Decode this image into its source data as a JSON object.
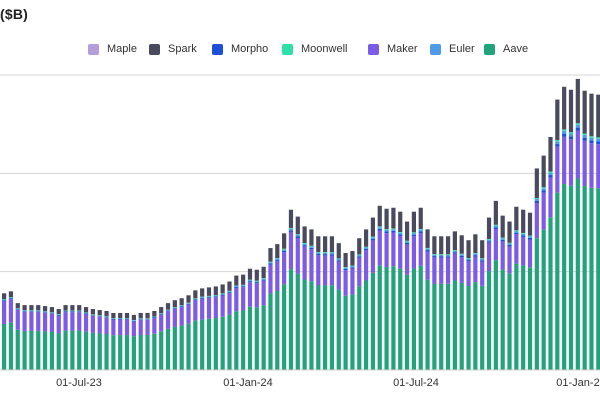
{
  "chart_data": {
    "type": "bar",
    "stacked": true,
    "title": "($B)",
    "xlabel": "",
    "ylabel": "",
    "x_ticks": [
      "01-Jul-23",
      "01-Jan-24",
      "01-Jul-24",
      "01-Jan-2"
    ],
    "grid": "horizontal",
    "legend_position": "top",
    "series": [
      {
        "name": "Maple",
        "color": "#b39ddb"
      },
      {
        "name": "Spark",
        "color": "#4a4a5e"
      },
      {
        "name": "Morpho",
        "color": "#1e4fd8"
      },
      {
        "name": "Moonwell",
        "color": "#2ee0a8"
      },
      {
        "name": "Maker",
        "color": "#7c5ce6"
      },
      {
        "name": "Euler",
        "color": "#4f9be8"
      },
      {
        "name": "Aave",
        "color": "#22a37c"
      }
    ],
    "bar_totals": [
      7.8,
      8.0,
      6.8,
      6.6,
      6.6,
      6.6,
      6.5,
      6.4,
      6.2,
      6.6,
      6.6,
      6.6,
      6.4,
      6.2,
      6.1,
      6.0,
      5.8,
      5.8,
      5.8,
      5.6,
      5.8,
      5.8,
      6.0,
      6.4,
      6.8,
      7.1,
      7.3,
      7.6,
      8.1,
      8.3,
      8.4,
      8.5,
      8.7,
      9.0,
      9.6,
      9.7,
      10.3,
      10.2,
      10.5,
      12.4,
      12.8,
      13.9,
      16.3,
      15.6,
      14.6,
      14.3,
      13.6,
      13.6,
      13.6,
      12.9,
      11.9,
      12.1,
      13.4,
      14.3,
      15.5,
      16.7,
      16.4,
      16.5,
      16.1,
      15.1,
      16.1,
      16.5,
      14.3,
      13.6,
      13.6,
      13.6,
      14.1,
      13.7,
      13.2,
      13.8,
      13.2,
      15.5,
      17.2,
      15.7,
      15.1,
      16.6,
      16.3,
      16.0,
      20.5,
      21.8,
      23.7,
      27.5,
      28.8,
      28.5,
      29.6,
      28.4,
      28.1,
      28.0
    ]
  }
}
